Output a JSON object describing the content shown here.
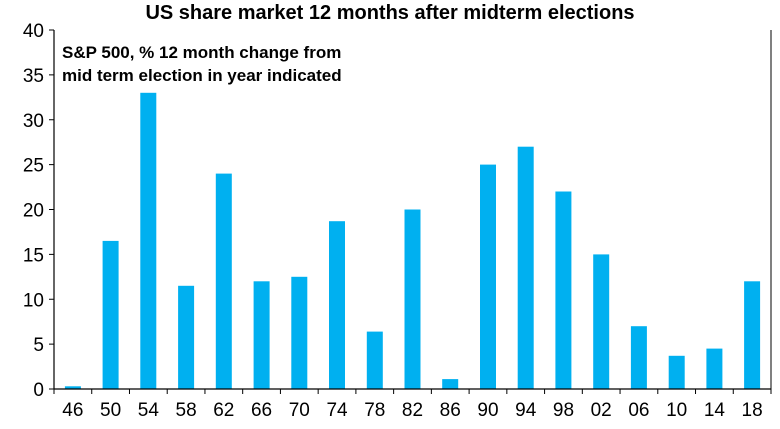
{
  "chart_data": {
    "type": "bar",
    "title": "US share market 12 months after midterm elections",
    "annotation_lines": [
      "S&P 500, % 12 month change from",
      "mid term election in year indicated"
    ],
    "categories": [
      "46",
      "50",
      "54",
      "58",
      "62",
      "66",
      "70",
      "74",
      "78",
      "82",
      "86",
      "90",
      "94",
      "98",
      "02",
      "06",
      "10",
      "14",
      "18"
    ],
    "values": [
      0.3,
      16.5,
      33,
      11.5,
      24,
      12,
      12.5,
      18.7,
      6.4,
      20,
      1.1,
      25,
      27,
      22,
      15,
      7,
      3.7,
      4.5,
      12
    ],
    "ylim": [
      0,
      40
    ],
    "yticks": [
      0,
      5,
      10,
      15,
      20,
      25,
      30,
      35,
      40
    ],
    "xlabel": "",
    "ylabel": "",
    "grid": false,
    "bar_color": "#00B0F0"
  }
}
